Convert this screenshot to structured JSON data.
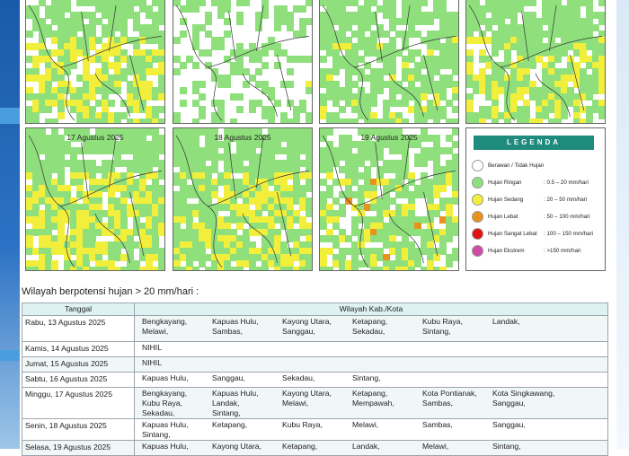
{
  "maps": [
    {
      "id": "m1",
      "title": ""
    },
    {
      "id": "m2",
      "title": ""
    },
    {
      "id": "m3",
      "title": ""
    },
    {
      "id": "m4",
      "title": ""
    },
    {
      "id": "m5",
      "title": "17 Agustus 2025"
    },
    {
      "id": "m6",
      "title": "18 Agustus 2025"
    },
    {
      "id": "m7",
      "title": "19 Agustus 2025"
    }
  ],
  "legend": {
    "title": "LEGENDA",
    "items": [
      {
        "label": "Berawan / Tidak Hujan",
        "range": "",
        "color": "#ffffff"
      },
      {
        "label": "Hujan Ringan",
        "range": ": 0.5 – 20 mm/hari",
        "color": "#8fe07c"
      },
      {
        "label": "Hujan Sedang",
        "range": ": 20 – 50 mm/hari",
        "color": "#f2ef3c"
      },
      {
        "label": "Hujan Lebat",
        "range": ": 50 – 100 mm/hari",
        "color": "#e8921e"
      },
      {
        "label": "Hujan Sangat Lebat",
        "range": ": 100 – 150 mm/hari",
        "color": "#e01212"
      },
      {
        "label": "Hujan Ekstrem",
        "range": ": >150 mm/hari",
        "color": "#d04aa8"
      }
    ]
  },
  "section": {
    "heading": "Wilayah berpotensi hujan > 20 mm/hari :"
  },
  "table": {
    "headers": [
      "Tanggal",
      "Wilayah Kab./Kota"
    ],
    "rows": [
      {
        "date": "Rabu, 13 Agustus 2025",
        "regions": [
          "Bengkayang,",
          "Kapuas Hulu,",
          "Kayong Utara,",
          "Ketapang,",
          "Kubu Raya,",
          "Landak,",
          "Melawi,",
          "Sambas,",
          "Sanggau,",
          "Sekadau,",
          "Sintang,"
        ]
      },
      {
        "date": "Kamis, 14 Agustus 2025",
        "regions": [
          "NIHIL"
        ]
      },
      {
        "date": "Jumat, 15 Agustus 2025",
        "regions": [
          "NIHIL"
        ]
      },
      {
        "date": "Sabtu, 16 Agustus 2025",
        "regions": [
          "Kapuas Hulu,",
          "Sanggau,",
          "Sekadau,",
          "Sintang,"
        ]
      },
      {
        "date": "Minggu, 17 Agustus 2025",
        "regions": [
          "Bengkayang,",
          "Kapuas Hulu,",
          "Kayong Utara,",
          "Ketapang,",
          "Kota Pontianak,",
          "Kota Singkawang,",
          "Kubu Raya,",
          "Landak,",
          "Melawi,",
          "Mempawah,",
          "Sambas,",
          "Sanggau,",
          "Sekadau,",
          "Sintang,"
        ]
      },
      {
        "date": "Senin, 18 Agustus 2025",
        "regions": [
          "Kapuas Hulu,",
          "Ketapang,",
          "Kubu Raya,",
          "Melawi,",
          "Sambas,",
          "Sanggau,",
          "Sintang,"
        ]
      },
      {
        "date": "Selasa, 19 Agustus 2025",
        "regions": [
          "Kapuas Hulu,",
          "Kayong Utara,",
          "Ketapang,",
          "Landak,",
          "Melawi,",
          "Sintang,"
        ]
      }
    ]
  }
}
